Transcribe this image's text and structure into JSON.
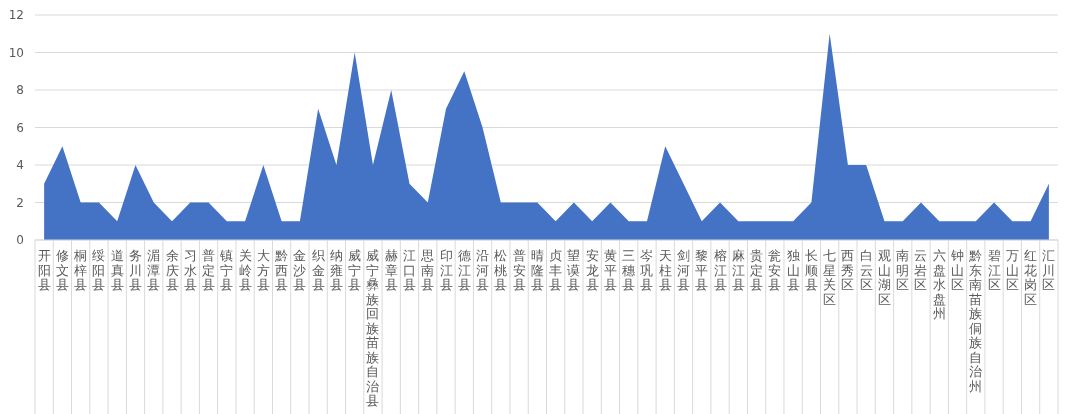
{
  "chart_data": {
    "type": "area",
    "categories": [
      "开阳县",
      "修文县",
      "桐梓县",
      "绥阳县",
      "道真县",
      "务川县",
      "湄潭县",
      "余庆县",
      "习水县",
      "普定县",
      "镇宁县",
      "关岭县",
      "大方县",
      "黔西县",
      "金沙县",
      "织金县",
      "纳雍县",
      "威宁县",
      "威宁彝族回族苗族自治县",
      "赫章县",
      "江口县",
      "思南县",
      "印江县",
      "德江县",
      "沿河县",
      "松桃县",
      "普安县",
      "晴隆县",
      "贞丰县",
      "望谟县",
      "安龙县",
      "黄平县",
      "三穗县",
      "岑巩县",
      "天柱县",
      "剑河县",
      "黎平县",
      "榕江县",
      "麻江县",
      "贵定县",
      "瓮安县",
      "独山县",
      "长顺县",
      "七星关区",
      "西秀区",
      "白云区",
      "观山湖区",
      "南明区",
      "云岩区",
      "六盘水盘州",
      "钟山区",
      "黔东南苗族侗族自治州",
      "碧江区",
      "万山区",
      "红花岗区",
      "汇川区"
    ],
    "values": [
      3,
      5,
      2,
      2,
      1,
      4,
      2,
      1,
      2,
      2,
      1,
      1,
      4,
      1,
      1,
      7,
      4,
      10,
      4,
      8,
      3,
      2,
      7,
      9,
      6,
      2,
      2,
      2,
      1,
      2,
      1,
      2,
      1,
      1,
      5,
      3,
      1,
      2,
      1,
      1,
      1,
      1,
      2,
      11,
      4,
      4,
      1,
      1,
      2,
      1,
      1,
      1,
      2,
      1,
      1,
      3
    ],
    "color": "#4472c4",
    "ylim": [
      0,
      12
    ],
    "yticks": [
      0,
      2,
      4,
      6,
      8,
      10,
      12
    ],
    "grid": "y"
  }
}
